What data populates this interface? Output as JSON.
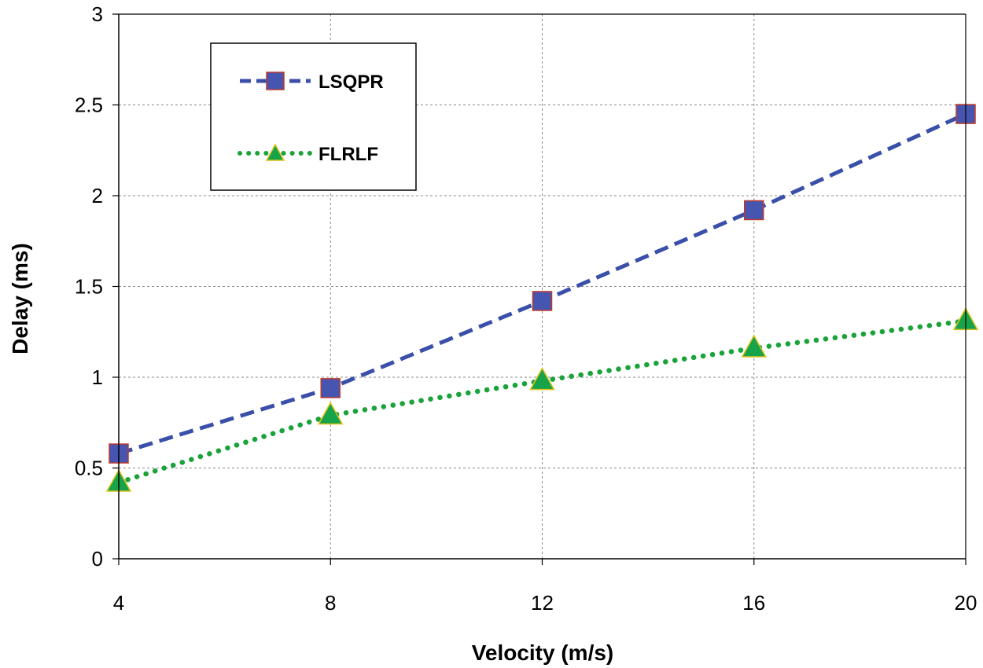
{
  "chart_data": {
    "type": "line",
    "title": "",
    "xlabel": "Velocity (m/s)",
    "ylabel": "Delay (ms)",
    "x": [
      4,
      8,
      12,
      16,
      20
    ],
    "x_tick_labels": [
      "4",
      "8",
      "12",
      "16",
      "20"
    ],
    "y_tick_values": [
      0,
      0.5,
      1,
      1.5,
      2,
      2.5,
      3
    ],
    "y_tick_labels": [
      "0",
      "0.5",
      "1",
      "1.5",
      "2",
      "2.5",
      "3"
    ],
    "xlim": [
      4,
      20
    ],
    "ylim": [
      0,
      3
    ],
    "grid": true,
    "legend_position": "top-left",
    "series": [
      {
        "name": "LSQPR",
        "values": [
          0.58,
          0.94,
          1.42,
          1.92,
          2.45
        ],
        "line_style": "dashed",
        "marker": "square",
        "line_color": "#3a4fa8",
        "marker_fill": "#4656b0",
        "marker_edge": "#c0392b"
      },
      {
        "name": "FLRLF",
        "values": [
          0.42,
          0.79,
          0.98,
          1.16,
          1.31
        ],
        "line_style": "dotted",
        "marker": "triangle",
        "line_color": "#1aa33a",
        "marker_fill": "#17a34a",
        "marker_edge": "#e0c31a"
      }
    ]
  }
}
